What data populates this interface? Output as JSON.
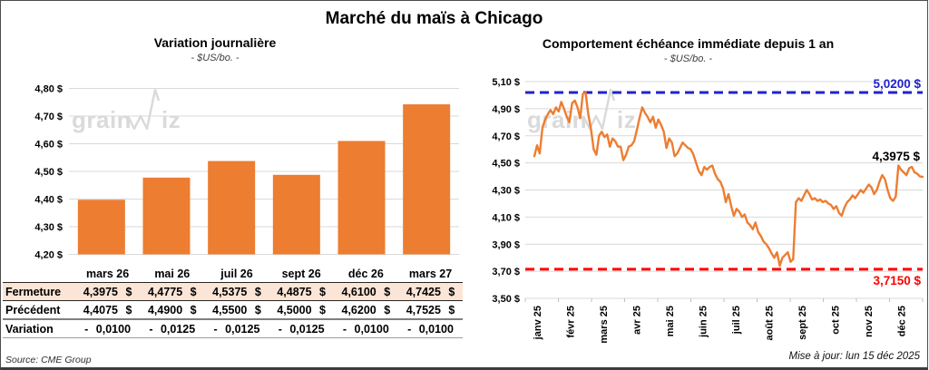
{
  "frame": {
    "main_title": "Marché du maïs à Chicago",
    "source_note": "Source: CME Group",
    "update_note": "Mise à jour: lun 15 déc 2025",
    "watermark": "grainwiz"
  },
  "colors": {
    "series_orange": "#ED7D31",
    "resistance_blue": "#2222CC",
    "support_red": "#FE0000",
    "gridline_gray": "#D9D9D9",
    "fermeture_bg": "#FBE5D6",
    "fermeture_text": "#B65708",
    "watermark_gray": "#DADADA"
  },
  "chart_data": [
    {
      "type": "bar",
      "title": "Variation journalière",
      "subtitle": "- $US/bo. -",
      "categories": [
        "mars 26",
        "mai 26",
        "juil 26",
        "sept 26",
        "déc 26",
        "mars 27"
      ],
      "values": [
        4.3975,
        4.4775,
        4.5375,
        4.4875,
        4.61,
        4.7425
      ],
      "ylim": [
        4.2,
        4.8
      ],
      "ytick_labels": [
        "4,80 $",
        "4,70 $",
        "4,60 $",
        "4,50 $",
        "4,40 $",
        "4,30 $",
        "4,20 $"
      ],
      "grid": true,
      "legend": "none"
    },
    {
      "type": "line",
      "title": "Comportement échéance immédiate depuis 1 an",
      "subtitle": "- $US/bo. -",
      "categories": [
        "janv 25",
        "févr 25",
        "mars 25",
        "avr 25",
        "mai 25",
        "juin 25",
        "juil 25",
        "août 25",
        "sept 25",
        "oct 25",
        "nov 25",
        "déc 25"
      ],
      "ylim": [
        3.5,
        5.1
      ],
      "ytick_labels": [
        "5,10 $",
        "4,90 $",
        "4,70 $",
        "4,50 $",
        "4,30 $",
        "4,10 $",
        "3,90 $",
        "3,70 $",
        "3,50 $"
      ],
      "resistance": {
        "value": 5.02,
        "label": "5,0200 $"
      },
      "support": {
        "value": 3.715,
        "label": "3,7150 $"
      },
      "last": {
        "value": 4.3975,
        "label": "4,3975 $"
      },
      "grid": true,
      "legend": "none",
      "values": [
        4.55,
        4.63,
        4.57,
        4.76,
        4.82,
        4.86,
        4.89,
        4.86,
        4.91,
        4.88,
        4.95,
        4.9,
        4.84,
        4.8,
        4.94,
        4.96,
        4.91,
        4.83,
        5.01,
        5.02,
        4.86,
        4.75,
        4.6,
        4.56,
        4.7,
        4.73,
        4.69,
        4.71,
        4.62,
        4.68,
        4.66,
        4.62,
        4.62,
        4.52,
        4.56,
        4.62,
        4.63,
        4.66,
        4.74,
        4.83,
        4.91,
        4.87,
        4.84,
        4.8,
        4.84,
        4.76,
        4.82,
        4.78,
        4.73,
        4.61,
        4.68,
        4.65,
        4.55,
        4.57,
        4.61,
        4.65,
        4.63,
        4.61,
        4.6,
        4.56,
        4.5,
        4.44,
        4.41,
        4.47,
        4.45,
        4.47,
        4.48,
        4.42,
        4.38,
        4.36,
        4.31,
        4.21,
        4.27,
        4.18,
        4.11,
        4.16,
        4.14,
        4.1,
        4.12,
        4.06,
        4.04,
        4.01,
        4.06,
        3.99,
        3.96,
        3.92,
        3.9,
        3.87,
        3.83,
        3.8,
        3.84,
        3.74,
        3.8,
        3.82,
        3.84,
        3.77,
        3.79,
        4.21,
        4.24,
        4.22,
        4.26,
        4.3,
        4.27,
        4.23,
        4.24,
        4.22,
        4.23,
        4.21,
        4.22,
        4.2,
        4.19,
        4.16,
        4.18,
        4.13,
        4.11,
        4.17,
        4.21,
        4.23,
        4.26,
        4.24,
        4.27,
        4.3,
        4.28,
        4.31,
        4.34,
        4.32,
        4.27,
        4.3,
        4.36,
        4.41,
        4.38,
        4.3,
        4.24,
        4.22,
        4.25,
        4.48,
        4.45,
        4.43,
        4.41,
        4.46,
        4.47,
        4.43,
        4.42,
        4.4,
        4.3975
      ]
    }
  ],
  "table": {
    "columns": [
      "mars 26",
      "mai 26",
      "juil 26",
      "sept 26",
      "déc 26",
      "mars 27"
    ],
    "rows": [
      {
        "id": "fermeture",
        "label": "Fermeture",
        "values": [
          "4,3975 $",
          "4,4775 $",
          "4,5375 $",
          "4,4875 $",
          "4,6100 $",
          "4,7425 $"
        ]
      },
      {
        "id": "precedent",
        "label": "Précédent",
        "values": [
          "4,4075 $",
          "4,4900 $",
          "4,5500 $",
          "4,5000 $",
          "4,6200 $",
          "4,7525 $"
        ]
      },
      {
        "id": "variation",
        "label": "Variation",
        "values": [
          "- 0,0100",
          "- 0,0125",
          "- 0,0125",
          "- 0,0125",
          "- 0,0100",
          "- 0,0100"
        ]
      }
    ]
  }
}
